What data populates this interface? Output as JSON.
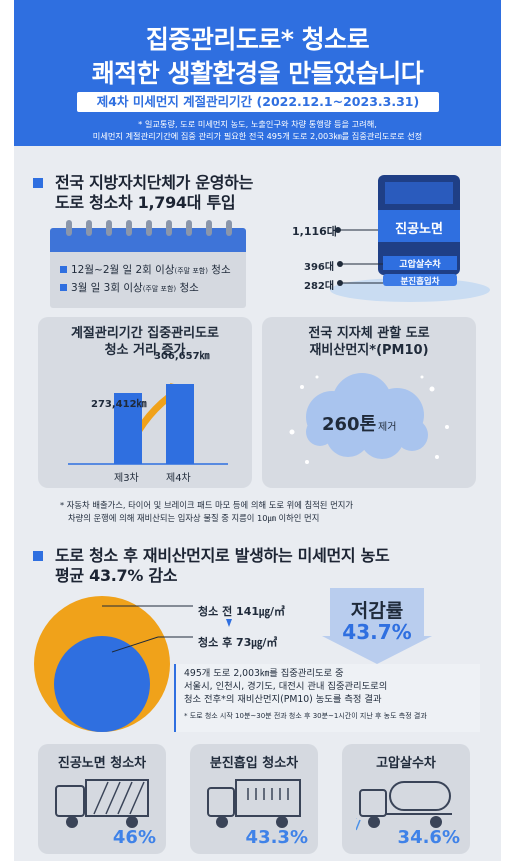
{
  "header": {
    "title_line1": "집중관리도로* 청소로",
    "title_line2": "쾌적한 생활환경을 만들었습니다",
    "period": "제4차 미세먼지 계절관리기간 (2022.12.1~2023.3.31)",
    "note_line1": "* 일교통량, 도로 미세먼지 농도, 노출인구와 차량 통행량 등을 고려해,",
    "note_line2": "미세먼지 계절관리기간에 집중 관리가 필요한 전국 495개 도로 2,003㎞를 집중관리도로로 선정"
  },
  "section1": {
    "title_line1": "전국 지방자치단체가 운영하는",
    "title_line2": "도로 청소차 1,794대 투입",
    "calendar": {
      "item1_main": "12월~2월 일 2회 이상",
      "item1_small": "(주말 포함)",
      "item1_tail": "청소",
      "item2_main": "3월 일 3회 이상",
      "item2_small": "(주말 포함)",
      "item2_tail": "청소"
    },
    "truck": {
      "count1": "1,116대",
      "count2": "396대",
      "count3": "282대",
      "type1": "진공노면",
      "type2": "고압살수차",
      "type3": "분진흡입차"
    }
  },
  "panel_distance": {
    "title_line1": "계절관리기간 집중관리도로",
    "title_line2": "청소 거리 증가",
    "bars": [
      {
        "label": "제3차",
        "value_text": "273,412㎞",
        "value": 273412
      },
      {
        "label": "제4차",
        "value_text": "306,657㎞",
        "value": 306657
      }
    ]
  },
  "panel_dust": {
    "title_line1": "전국 지자체 관할 도로",
    "title_line2": "재비산먼지*(PM10)",
    "amount": "260톤",
    "amount_suffix": "제거"
  },
  "footnote": {
    "line1": "* 자동차 배출가스, 타이어 및 브레이크 패드 마모 등에 의해 도로 위에 침적된 먼지가",
    "line2": "차량의 운행에 의해 재비산되는 입자상 물질 중 지름이 10㎛ 이하인 먼지"
  },
  "section2": {
    "title_line1": "도로 청소 후 재비산먼지로 발생하는 미세먼지 농도",
    "title_line2": "평균 43.7% 감소",
    "before_label": "청소 전",
    "before_value": "141㎍/㎥",
    "after_label": "청소 후",
    "after_value": "73㎍/㎥",
    "rate_label": "저감률",
    "rate_value": "43.7%",
    "info_line1": "495개 도로 2,003㎞를 집중관리도로 중",
    "info_line2": "서울시, 인천시, 경기도, 대전시 관내 집중관리도로의",
    "info_line3": "청소 전후*의 재비산먼지(PM10) 농도를 측정 결과",
    "info_note": "* 도로 청소 시작 10분~30분 전과 청소 후 30분~1시간이 지난 후 농도 측정 결과"
  },
  "cards": [
    {
      "title": "진공노면 청소차",
      "percent": "46%",
      "icon": "vacuum-truck-icon"
    },
    {
      "title": "분진흡입 청소차",
      "percent": "43.3%",
      "icon": "dust-suction-truck-icon"
    },
    {
      "title": "고압살수차",
      "percent": "34.6%",
      "icon": "water-spray-truck-icon"
    }
  ],
  "colors": {
    "accent": "#2f6fe0",
    "background": "#e9ecf1",
    "orange": "#f0a21a",
    "percent": "#3f82e8"
  }
}
